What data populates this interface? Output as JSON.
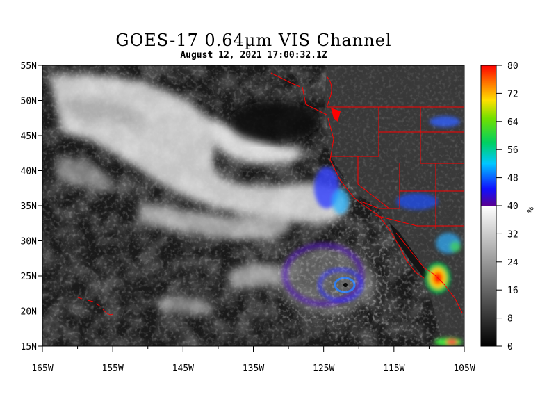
{
  "title": "GOES-17  0.64µm VIS Channel",
  "subtitle": "August 12,  2021 17:00:32.1Z",
  "map": {
    "lon_range": [
      -165,
      -105
    ],
    "lat_range": [
      15,
      55
    ],
    "lon_ticks": [
      "165W",
      "155W",
      "145W",
      "135W",
      "125W",
      "115W",
      "105W"
    ],
    "lat_ticks": [
      "55N",
      "50N",
      "45N",
      "40N",
      "35N",
      "30N",
      "25N",
      "20N",
      "15N"
    ],
    "imagery": "visible satellite reflectance, grayscale with colored high-reflectance tops",
    "features": [
      {
        "type": "cloud-band",
        "label": ""
      },
      {
        "type": "tropical-cyclone",
        "lat": 22.5,
        "lon": -121.5
      },
      {
        "type": "storm-cloud",
        "lat": 24.3,
        "lon": -108.8
      }
    ],
    "boundary_color": "#ff0000",
    "background_ocean": "#1a1a1a"
  },
  "colorbar": {
    "ticks": [
      "80",
      "72",
      "64",
      "56",
      "48",
      "40",
      "32",
      "24",
      "16",
      "8",
      "0"
    ],
    "unit": "%",
    "range": [
      0,
      80
    ]
  }
}
